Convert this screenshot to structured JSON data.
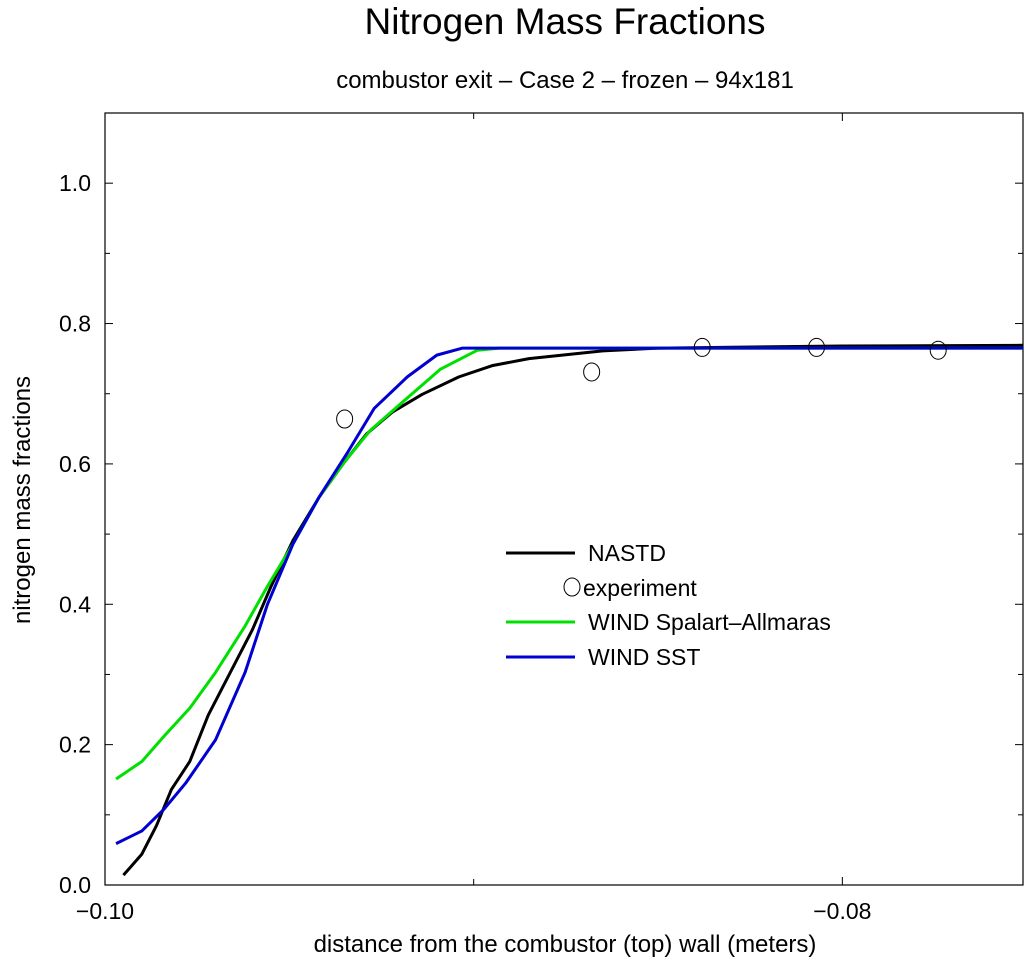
{
  "chart_data": {
    "type": "line",
    "title": "Nitrogen Mass Fractions",
    "subtitle": "combustor exit – Case 2 – frozen – 94x181",
    "xlabel": "distance from the combustor (top) wall (meters)",
    "ylabel": "nitrogen mass fractions",
    "xlim": [
      -0.1,
      -0.0751
    ],
    "ylim": [
      0.0,
      1.1
    ],
    "x_ticks": [
      {
        "value": -0.1,
        "label": "−0.10"
      },
      {
        "value": -0.08,
        "label": "−0.08"
      }
    ],
    "x_minor_ticks": [
      -0.09
    ],
    "y_ticks": [
      {
        "value": 0.0,
        "label": "0.0"
      },
      {
        "value": 0.2,
        "label": "0.2"
      },
      {
        "value": 0.4,
        "label": "0.4"
      },
      {
        "value": 0.6,
        "label": "0.6"
      },
      {
        "value": 0.8,
        "label": "0.8"
      },
      {
        "value": 1.0,
        "label": "1.0"
      }
    ],
    "y_minor_ticks": [
      0.1,
      0.3,
      0.5,
      0.7,
      0.9
    ],
    "grid": false,
    "legend_position": "center-right",
    "series": [
      {
        "name": "NASTD",
        "kind": "line",
        "color": "#000000",
        "x": [
          -0.0995,
          -0.099,
          -0.0986,
          -0.0982,
          -0.0977,
          -0.0972,
          -0.0966,
          -0.096,
          -0.0955,
          -0.0949,
          -0.0942,
          -0.0935,
          -0.0929,
          -0.0922,
          -0.0914,
          -0.0904,
          -0.0895,
          -0.0885,
          -0.0865,
          -0.085,
          -0.08,
          -0.0751
        ],
        "y": [
          0.014,
          0.044,
          0.085,
          0.136,
          0.176,
          0.242,
          0.303,
          0.364,
          0.425,
          0.491,
          0.552,
          0.603,
          0.643,
          0.674,
          0.699,
          0.724,
          0.74,
          0.75,
          0.761,
          0.765,
          0.768,
          0.769
        ]
      },
      {
        "name": "experiment",
        "kind": "marker",
        "marker": "open-circle",
        "color": "#000000",
        "x": [
          -0.0935,
          -0.0868,
          -0.0838,
          -0.0807,
          -0.0774
        ],
        "y": [
          0.664,
          0.731,
          0.766,
          0.766,
          0.762
        ]
      },
      {
        "name": "WIND Spalart–Allmaras",
        "kind": "line",
        "color": "#00e000",
        "x": [
          -0.0997,
          -0.099,
          -0.0984,
          -0.0977,
          -0.097,
          -0.0962,
          -0.0956,
          -0.0949,
          -0.0942,
          -0.0935,
          -0.0928,
          -0.0918,
          -0.0909,
          -0.0899,
          -0.0893,
          -0.0751
        ],
        "y": [
          0.151,
          0.176,
          0.212,
          0.252,
          0.303,
          0.369,
          0.425,
          0.486,
          0.552,
          0.603,
          0.648,
          0.694,
          0.735,
          0.762,
          0.765,
          0.765
        ]
      },
      {
        "name": "WIND SST",
        "kind": "line",
        "color": "#0000d0",
        "x": [
          -0.0997,
          -0.099,
          -0.0984,
          -0.0978,
          -0.097,
          -0.0962,
          -0.0956,
          -0.0949,
          -0.0942,
          -0.0934,
          -0.0927,
          -0.0918,
          -0.091,
          -0.0903,
          -0.0751
        ],
        "y": [
          0.059,
          0.077,
          0.108,
          0.146,
          0.207,
          0.303,
          0.399,
          0.486,
          0.552,
          0.618,
          0.679,
          0.724,
          0.755,
          0.765,
          0.765
        ]
      }
    ]
  }
}
